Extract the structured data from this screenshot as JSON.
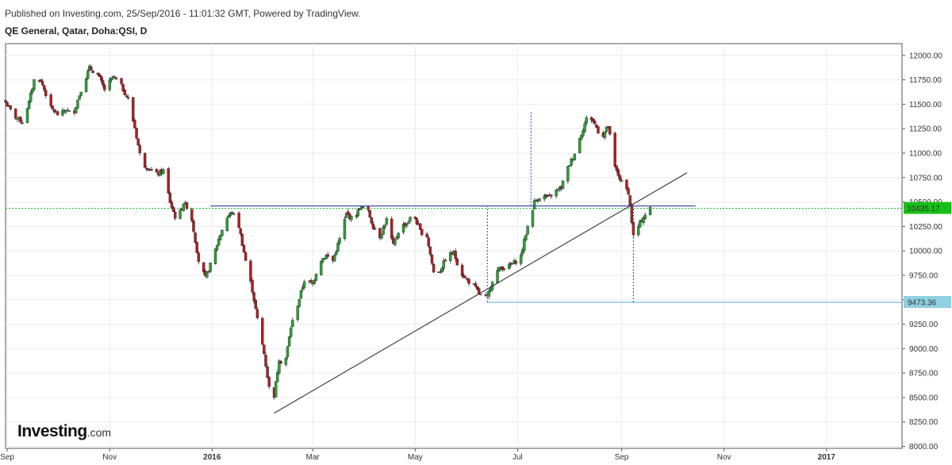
{
  "header": {
    "published": "Published on Investing.com, 25/Sep/2016 - 11:01:32 GMT, Powered by TradingView.",
    "title": "QE General, Qatar, Doha:QSI, D"
  },
  "logo": {
    "main": "Investing",
    "suffix": ".com"
  },
  "colors": {
    "up": "#2ea03a",
    "down": "#b01e22",
    "level_line": "#3a4fa8",
    "trend_line": "#333333",
    "measure": "#3c5fd6",
    "last_price_bg": "#16c016",
    "marker_bg": "#8fd0e3"
  },
  "chart_data": {
    "type": "candlestick",
    "title": "",
    "xlabel": "",
    "ylabel": "",
    "x_ticks": [
      "Sep",
      "Nov",
      "2016",
      "Mar",
      "May",
      "Jul",
      "Sep",
      "Nov",
      "2017"
    ],
    "x_tick_dates": [
      "2015-09-01",
      "2015-11-01",
      "2016-01-01",
      "2016-03-01",
      "2016-05-01",
      "2016-07-01",
      "2016-09-01",
      "2016-11-01",
      "2017-01-01"
    ],
    "x_range": [
      "2015-08-31",
      "2017-02-15"
    ],
    "ylim": [
      7980,
      12120
    ],
    "y_ticks": [
      "12000.00",
      "11750.00",
      "11500.00",
      "11250.00",
      "11000.00",
      "10750.00",
      "10500.00",
      "10250.00",
      "10000.00",
      "9750.00",
      "9500.00",
      "9250.00",
      "9000.00",
      "8750.00",
      "8500.00",
      "8250.00",
      "8000.00"
    ],
    "y_tick_values": [
      12000,
      11750,
      11500,
      11250,
      11000,
      10750,
      10500,
      10250,
      10000,
      9750,
      9500,
      9250,
      9000,
      8750,
      8500,
      8250,
      8000
    ],
    "last_price": {
      "label": "10435.17",
      "value": 10435.17
    },
    "marker": {
      "label": "9473.36",
      "value": 9473.36
    },
    "grid": true,
    "close_path": [
      [
        "2015-08-31",
        11520
      ],
      [
        "2015-09-05",
        11380
      ],
      [
        "2015-09-10",
        11320
      ],
      [
        "2015-09-14",
        11520
      ],
      [
        "2015-09-18",
        11820
      ],
      [
        "2015-09-22",
        11700
      ],
      [
        "2015-09-27",
        11460
      ],
      [
        "2015-10-02",
        11380
      ],
      [
        "2015-10-06",
        11450
      ],
      [
        "2015-10-10",
        11380
      ],
      [
        "2015-10-15",
        11650
      ],
      [
        "2015-10-20",
        11870
      ],
      [
        "2015-10-25",
        11800
      ],
      [
        "2015-10-29",
        11650
      ],
      [
        "2015-11-03",
        11780
      ],
      [
        "2015-11-07",
        11720
      ],
      [
        "2015-11-12",
        11550
      ],
      [
        "2015-11-16",
        11260
      ],
      [
        "2015-11-20",
        10900
      ],
      [
        "2015-11-24",
        10850
      ],
      [
        "2015-11-29",
        10780
      ],
      [
        "2015-12-03",
        10820
      ],
      [
        "2015-12-07",
        10500
      ],
      [
        "2015-12-11",
        10300
      ],
      [
        "2015-12-15",
        10490
      ],
      [
        "2015-12-19",
        10420
      ],
      [
        "2015-12-24",
        9900
      ],
      [
        "2015-12-28",
        9720
      ],
      [
        "2016-01-01",
        9900
      ],
      [
        "2016-01-05",
        10120
      ],
      [
        "2016-01-09",
        10320
      ],
      [
        "2016-01-13",
        10400
      ],
      [
        "2016-01-17",
        10250
      ],
      [
        "2016-01-21",
        9900
      ],
      [
        "2016-01-25",
        9600
      ],
      [
        "2016-01-28",
        9300
      ],
      [
        "2016-02-01",
        8950
      ],
      [
        "2016-02-04",
        8600
      ],
      [
        "2016-02-07",
        8520
      ],
      [
        "2016-02-10",
        8900
      ],
      [
        "2016-02-13",
        8800
      ],
      [
        "2016-02-17",
        9220
      ],
      [
        "2016-02-21",
        9450
      ],
      [
        "2016-02-25",
        9700
      ],
      [
        "2016-03-01",
        9660
      ],
      [
        "2016-03-05",
        9900
      ],
      [
        "2016-03-09",
        9950
      ],
      [
        "2016-03-13",
        9900
      ],
      [
        "2016-03-17",
        10120
      ],
      [
        "2016-03-21",
        10380
      ],
      [
        "2016-03-25",
        10320
      ],
      [
        "2016-03-29",
        10440
      ],
      [
        "2016-04-02",
        10450
      ],
      [
        "2016-04-06",
        10250
      ],
      [
        "2016-04-10",
        10150
      ],
      [
        "2016-04-14",
        10320
      ],
      [
        "2016-04-18",
        10050
      ],
      [
        "2016-04-22",
        10250
      ],
      [
        "2016-04-26",
        10280
      ],
      [
        "2016-04-30",
        10380
      ],
      [
        "2016-05-04",
        10200
      ],
      [
        "2016-05-08",
        10150
      ],
      [
        "2016-05-12",
        9780
      ],
      [
        "2016-05-16",
        9800
      ],
      [
        "2016-05-20",
        9950
      ],
      [
        "2016-05-24",
        9980
      ],
      [
        "2016-05-28",
        9780
      ],
      [
        "2016-06-01",
        9700
      ],
      [
        "2016-06-05",
        9640
      ],
      [
        "2016-06-09",
        9540
      ],
      [
        "2016-06-13",
        9520
      ],
      [
        "2016-06-17",
        9760
      ],
      [
        "2016-06-21",
        9830
      ],
      [
        "2016-06-25",
        9830
      ],
      [
        "2016-06-29",
        9880
      ],
      [
        "2016-07-03",
        9950
      ],
      [
        "2016-07-07",
        10250
      ],
      [
        "2016-07-11",
        10500
      ],
      [
        "2016-07-15",
        10570
      ],
      [
        "2016-07-19",
        10540
      ],
      [
        "2016-07-23",
        10600
      ],
      [
        "2016-07-27",
        10650
      ],
      [
        "2016-07-31",
        10850
      ],
      [
        "2016-08-04",
        11000
      ],
      [
        "2016-08-08",
        11200
      ],
      [
        "2016-08-12",
        11400
      ],
      [
        "2016-08-16",
        11300
      ],
      [
        "2016-08-20",
        11150
      ],
      [
        "2016-08-24",
        11280
      ],
      [
        "2016-08-28",
        10850
      ],
      [
        "2016-09-01",
        10700
      ],
      [
        "2016-09-05",
        10600
      ],
      [
        "2016-09-08",
        10150
      ],
      [
        "2016-09-11",
        10250
      ],
      [
        "2016-09-14",
        10350
      ],
      [
        "2016-09-18",
        10435
      ]
    ],
    "drawings": {
      "resistance_line": {
        "from": [
          "2015-12-31",
          10460
        ],
        "to": [
          "2016-10-15",
          10460
        ]
      },
      "trend_line": {
        "from": [
          "2016-02-07",
          8340
        ],
        "to": [
          "2016-10-10",
          10800
        ]
      },
      "support_marker_line": {
        "from": [
          "2016-06-13",
          9473.36
        ],
        "to": [
          "2017-02-15",
          9473.36
        ]
      },
      "measure_left": {
        "from": [
          "2016-06-13",
          9473.36
        ],
        "to": [
          "2016-06-13",
          10460
        ]
      },
      "measure_up": {
        "from": [
          "2016-07-09",
          10460
        ],
        "to": [
          "2016-07-09",
          11420
        ]
      },
      "measure_right": {
        "from": [
          "2016-09-08",
          9473.36
        ],
        "to": [
          "2016-09-08",
          10460
        ]
      }
    }
  }
}
